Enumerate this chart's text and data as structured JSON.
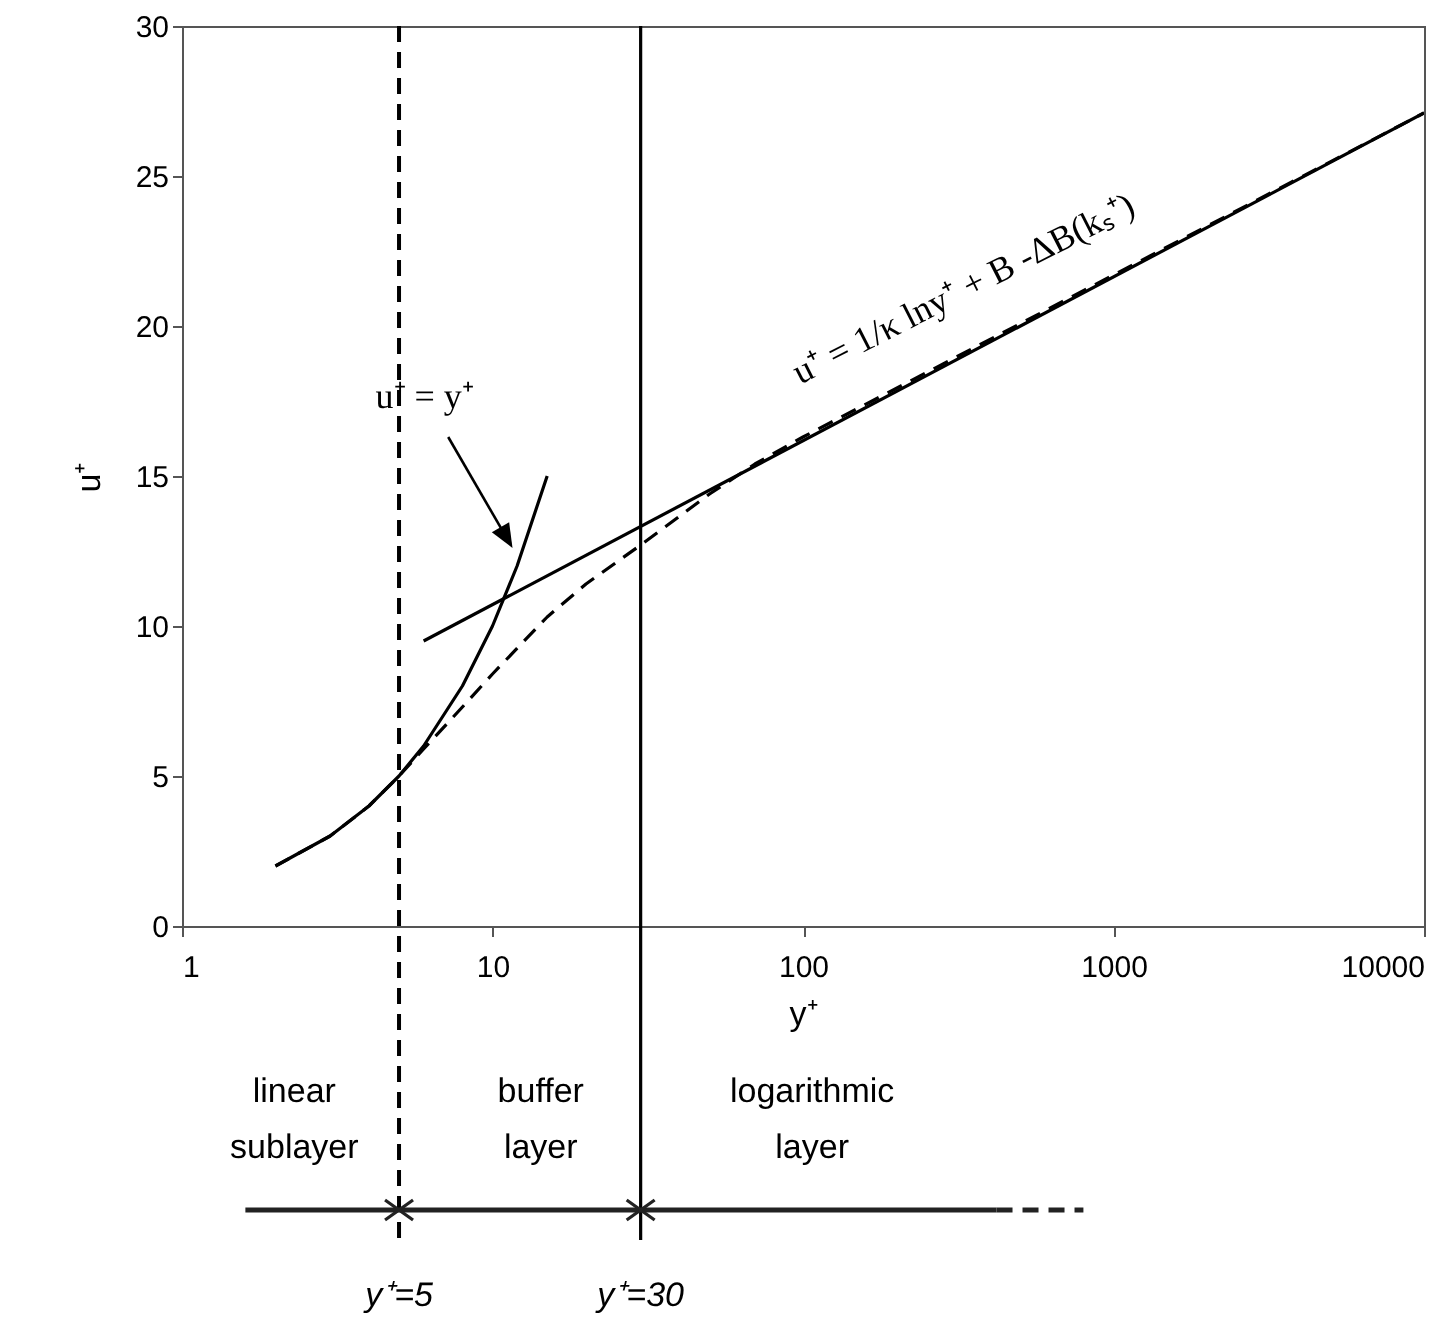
{
  "chart_data": {
    "type": "line",
    "xlabel": "y⁺",
    "ylabel": "u⁺",
    "log": "x",
    "xlim": [
      1,
      10000
    ],
    "xticks": [
      1,
      10,
      100,
      1000,
      10000
    ],
    "ylim": [
      0,
      30
    ],
    "yticks": [
      0,
      5,
      10,
      15,
      20,
      25,
      30
    ],
    "grid": false,
    "marker": "none",
    "series": [
      {
        "color": "#000000",
        "line_style": "solid",
        "x": [
          2,
          3,
          4,
          5,
          6,
          8,
          10,
          12,
          15
        ],
        "values": [
          2,
          3,
          4,
          5,
          6,
          8,
          10,
          12,
          15
        ]
      },
      {
        "color": "#000000",
        "line_style": "solid",
        "x": [
          6,
          10000
        ],
        "values": [
          9.5,
          27.1
        ]
      },
      {
        "color": "#000000",
        "line_style": "dashed",
        "x": [
          2,
          3,
          4,
          5,
          6,
          8,
          10,
          15,
          20,
          30,
          50,
          70,
          100,
          1000,
          10000
        ],
        "values": [
          2,
          3,
          4,
          5,
          5.9,
          7.3,
          8.4,
          10.3,
          11.4,
          12.7,
          14.4,
          15.4,
          16.3,
          21.7,
          27.1
        ]
      }
    ],
    "ref_lines": [
      {
        "axis": "x",
        "value": 5,
        "label": "y⁺=5",
        "line_style": "dashed",
        "color": "#000000"
      },
      {
        "axis": "x",
        "value": 30,
        "label": "y⁺=30",
        "line_style": "solid",
        "color": "#000000"
      }
    ],
    "annotations": [
      "u⁺ = y⁺",
      "u⁺ = 1/κ lny⁺ + B -ΔB(kₛ⁺)",
      "linear sublayer",
      "buffer layer",
      "logarithmic layer"
    ]
  }
}
